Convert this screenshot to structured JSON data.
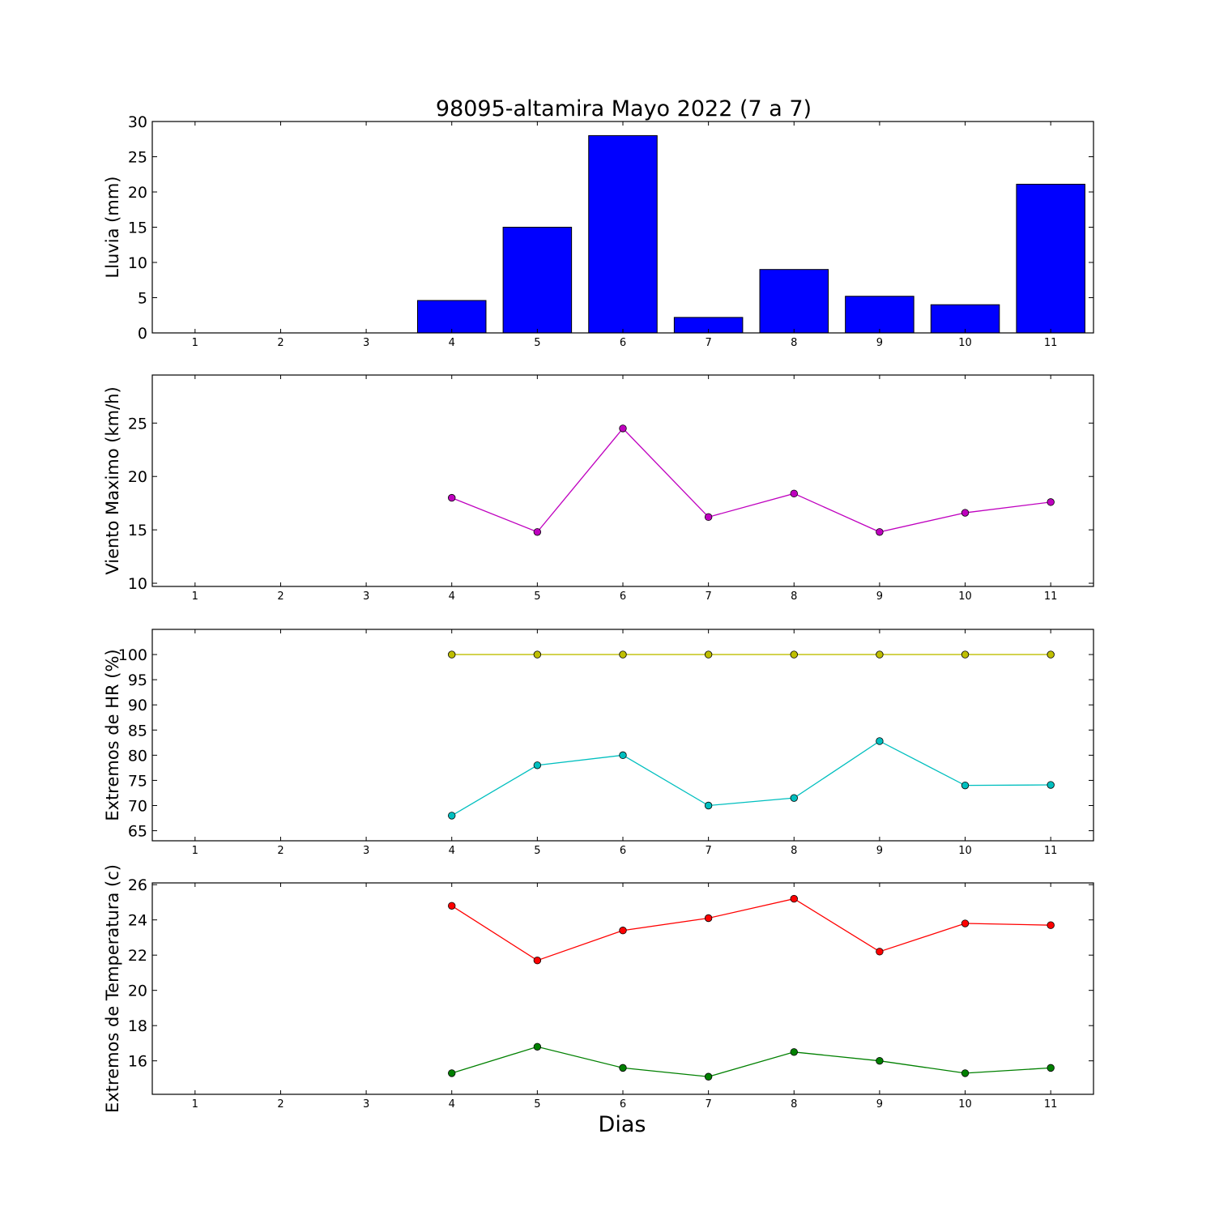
{
  "chart_data": [
    {
      "type": "bar",
      "title": "98095-altamira Mayo 2022  (7 a 7)",
      "ylabel": "Lluvia (mm)",
      "xlabel": "",
      "x": [
        4,
        5,
        6,
        7,
        8,
        9,
        10,
        11
      ],
      "xticks": [
        "1",
        "2",
        "3",
        "4",
        "5",
        "6",
        "7",
        "8",
        "9",
        "10",
        "11"
      ],
      "yticks": [
        "0",
        "5",
        "10",
        "15",
        "20",
        "25",
        "30"
      ],
      "xlim": [
        0.5,
        11.5
      ],
      "ylim": [
        0,
        30
      ],
      "values": [
        4.6,
        15.0,
        28.0,
        2.2,
        9.0,
        5.2,
        4.0,
        21.1
      ],
      "color": "#0000ff"
    },
    {
      "type": "line",
      "ylabel": "Viento Maximo (km/h)",
      "xlabel": "",
      "x": [
        4,
        5,
        6,
        7,
        8,
        9,
        10,
        11
      ],
      "xticks": [
        "1",
        "2",
        "3",
        "4",
        "5",
        "6",
        "7",
        "8",
        "9",
        "10",
        "11"
      ],
      "yticks": [
        "10",
        "15",
        "20",
        "25"
      ],
      "xlim": [
        0.5,
        11.5
      ],
      "ylim": [
        9.7,
        29.5
      ],
      "series": [
        {
          "values": [
            18.0,
            14.8,
            24.5,
            16.2,
            18.4,
            14.8,
            16.6,
            17.6
          ],
          "color": "#bf00bf"
        }
      ]
    },
    {
      "type": "line",
      "ylabel": "Extremos de HR (%)",
      "xlabel": "",
      "x": [
        4,
        5,
        6,
        7,
        8,
        9,
        10,
        11
      ],
      "xticks": [
        "1",
        "2",
        "3",
        "4",
        "5",
        "6",
        "7",
        "8",
        "9",
        "10",
        "11"
      ],
      "yticks": [
        "65",
        "70",
        "75",
        "80",
        "85",
        "90",
        "95",
        "100"
      ],
      "xlim": [
        0.5,
        11.5
      ],
      "ylim": [
        63,
        105
      ],
      "series": [
        {
          "values": [
            100,
            100,
            100,
            100,
            100,
            100,
            100,
            100
          ],
          "color": "#bfbf00"
        },
        {
          "values": [
            68.0,
            78.0,
            80.0,
            70.0,
            71.5,
            82.8,
            74.0,
            74.1
          ],
          "color": "#00bfbf"
        }
      ]
    },
    {
      "type": "line",
      "ylabel": "Extremos de Temperatura (c)",
      "xlabel": "Dias",
      "x": [
        4,
        5,
        6,
        7,
        8,
        9,
        10,
        11
      ],
      "xticks": [
        "1",
        "2",
        "3",
        "4",
        "5",
        "6",
        "7",
        "8",
        "9",
        "10",
        "11"
      ],
      "yticks": [
        "16",
        "18",
        "20",
        "22",
        "24",
        "26"
      ],
      "xlim": [
        0.5,
        11.5
      ],
      "ylim": [
        14.1,
        26.1
      ],
      "series": [
        {
          "values": [
            24.8,
            21.7,
            23.4,
            24.1,
            25.2,
            22.2,
            23.8,
            23.7
          ],
          "color": "#ff0000"
        },
        {
          "values": [
            15.3,
            16.8,
            15.6,
            15.1,
            16.5,
            16.0,
            15.3,
            15.6
          ],
          "color": "#008000"
        }
      ]
    }
  ]
}
